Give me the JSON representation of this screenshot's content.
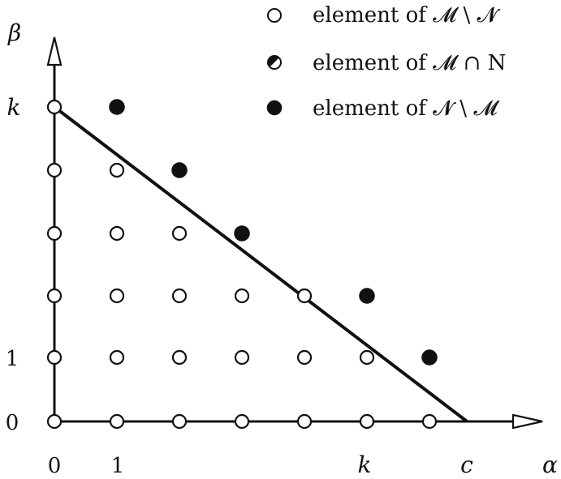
{
  "axes": {
    "x_label": "α",
    "y_label": "β",
    "x_ticks": [
      "0",
      "1",
      "k",
      "c"
    ],
    "y_ticks": [
      "0",
      "1",
      "k"
    ]
  },
  "legend": [
    {
      "kind": "open",
      "text": "element of 𝓜 \\ 𝓝"
    },
    {
      "kind": "half",
      "text": "element of 𝓜 ∩ N"
    },
    {
      "kind": "filled",
      "text": "element of 𝓝 \\ 𝓜"
    }
  ],
  "colors": {
    "ink": "#111111",
    "background": "#ffffff"
  },
  "points": [
    {
      "a": 0,
      "b": 0,
      "kind": "open"
    },
    {
      "a": 1,
      "b": 0,
      "kind": "open"
    },
    {
      "a": 2,
      "b": 0,
      "kind": "open"
    },
    {
      "a": 3,
      "b": 0,
      "kind": "open"
    },
    {
      "a": 4,
      "b": 0,
      "kind": "open"
    },
    {
      "a": 5,
      "b": 0,
      "kind": "open"
    },
    {
      "a": 6,
      "b": 0,
      "kind": "open"
    },
    {
      "a": 0,
      "b": 1,
      "kind": "open"
    },
    {
      "a": 1,
      "b": 1,
      "kind": "open"
    },
    {
      "a": 2,
      "b": 1,
      "kind": "open"
    },
    {
      "a": 3,
      "b": 1,
      "kind": "open"
    },
    {
      "a": 4,
      "b": 1,
      "kind": "open"
    },
    {
      "a": 5,
      "b": 1,
      "kind": "open"
    },
    {
      "a": 6,
      "b": 1,
      "kind": "filled"
    },
    {
      "a": 0,
      "b": 2,
      "kind": "open"
    },
    {
      "a": 1,
      "b": 2,
      "kind": "open"
    },
    {
      "a": 2,
      "b": 2,
      "kind": "open"
    },
    {
      "a": 3,
      "b": 2,
      "kind": "open"
    },
    {
      "a": 4,
      "b": 2,
      "kind": "open"
    },
    {
      "a": 5,
      "b": 2,
      "kind": "filled"
    },
    {
      "a": 0,
      "b": 3,
      "kind": "open"
    },
    {
      "a": 1,
      "b": 3,
      "kind": "open"
    },
    {
      "a": 2,
      "b": 3,
      "kind": "open"
    },
    {
      "a": 3,
      "b": 3,
      "kind": "filled"
    },
    {
      "a": 0,
      "b": 4,
      "kind": "open"
    },
    {
      "a": 1,
      "b": 4,
      "kind": "open"
    },
    {
      "a": 2,
      "b": 4,
      "kind": "filled"
    },
    {
      "a": 0,
      "b": 5,
      "kind": "open"
    },
    {
      "a": 1,
      "b": 5,
      "kind": "filled"
    }
  ],
  "boundary_line": {
    "from": [
      0,
      5
    ],
    "to": [
      6.6,
      0
    ]
  }
}
